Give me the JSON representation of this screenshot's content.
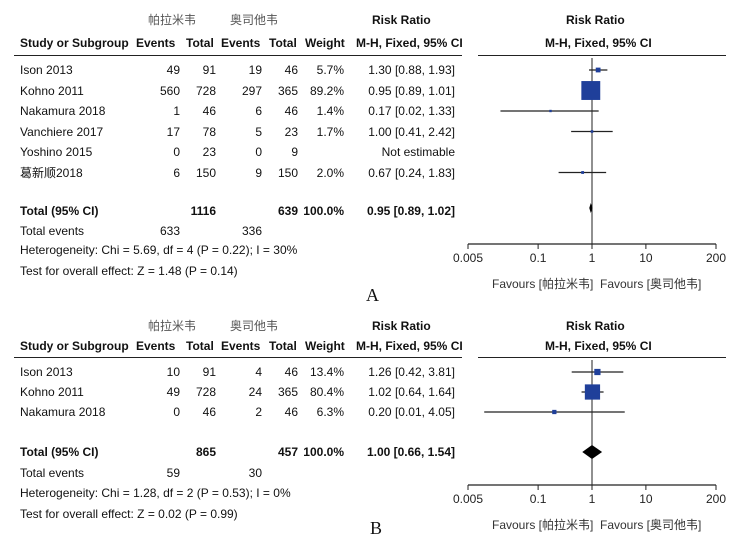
{
  "headers": {
    "study": "Study or Subgroup",
    "events": "Events",
    "total": "Total",
    "weight": "Weight",
    "rr_title": "Risk Ratio",
    "rr_method": "M-H, Fixed, 95% CI"
  },
  "panels": [
    {
      "label": "A",
      "group1": "帕拉米韦",
      "group2": "奥司他韦",
      "rows": [
        {
          "study": "Ison 2013",
          "e1": "49",
          "t1": "91",
          "e2": "19",
          "t2": "46",
          "weight": "5.7%",
          "ci": "1.30 [0.88, 1.93]"
        },
        {
          "study": "Kohno 2011",
          "e1": "560",
          "t1": "728",
          "e2": "297",
          "t2": "365",
          "weight": "89.2%",
          "ci": "0.95 [0.89, 1.01]"
        },
        {
          "study": "Nakamura 2018",
          "e1": "1",
          "t1": "46",
          "e2": "6",
          "t2": "46",
          "weight": "1.4%",
          "ci": "0.17 [0.02, 1.33]"
        },
        {
          "study": "Vanchiere 2017",
          "e1": "17",
          "t1": "78",
          "e2": "5",
          "t2": "23",
          "weight": "1.7%",
          "ci": "1.00 [0.41, 2.42]"
        },
        {
          "study": "Yoshino 2015",
          "e1": "0",
          "t1": "23",
          "e2": "0",
          "t2": "9",
          "weight": "",
          "ci": "Not estimable"
        },
        {
          "study": "葛新顺2018",
          "e1": "6",
          "t1": "150",
          "e2": "9",
          "t2": "150",
          "weight": "2.0%",
          "ci": "0.67 [0.24, 1.83]"
        }
      ],
      "total": {
        "label": "Total (95% CI)",
        "t1": "1116",
        "t2": "639",
        "weight": "100.0%",
        "ci": "0.95 [0.89, 1.02]"
      },
      "events": {
        "label": "Total events",
        "e1": "633",
        "e2": "336"
      },
      "heterogeneity": "Heterogeneity: Chi  = 5.69, df = 4 (P = 0.22); I  = 30%",
      "overall": "Test for overall effect: Z = 1.48 (P = 0.14)",
      "axis_ticks": [
        "0.005",
        "0.1",
        "1",
        "10",
        "200"
      ],
      "favours_left": "Favours [帕拉米韦]",
      "favours_right": "Favours [奥司他韦]"
    },
    {
      "label": "B",
      "group1": "帕拉米韦",
      "group2": "奥司他韦",
      "rows": [
        {
          "study": "Ison 2013",
          "e1": "10",
          "t1": "91",
          "e2": "4",
          "t2": "46",
          "weight": "13.4%",
          "ci": "1.26 [0.42, 3.81]"
        },
        {
          "study": "Kohno 2011",
          "e1": "49",
          "t1": "728",
          "e2": "24",
          "t2": "365",
          "weight": "80.4%",
          "ci": "1.02 [0.64, 1.64]"
        },
        {
          "study": "Nakamura 2018",
          "e1": "0",
          "t1": "46",
          "e2": "2",
          "t2": "46",
          "weight": "6.3%",
          "ci": "0.20 [0.01, 4.05]"
        }
      ],
      "total": {
        "label": "Total (95% CI)",
        "t1": "865",
        "t2": "457",
        "weight": "100.0%",
        "ci": "1.00 [0.66, 1.54]"
      },
      "events": {
        "label": "Total events",
        "e1": "59",
        "e2": "30"
      },
      "heterogeneity": "Heterogeneity: Chi  = 1.28, df = 2 (P = 0.53); I  = 0%",
      "overall": "Test for overall effect: Z = 0.02 (P = 0.99)",
      "axis_ticks": [
        "0.005",
        "0.1",
        "1",
        "10",
        "200"
      ],
      "favours_left": "Favours [帕拉米韦]",
      "favours_right": "Favours [奥司他韦]"
    }
  ],
  "chart_data": [
    {
      "type": "forest",
      "xscale": "log",
      "xlim": [
        0.005,
        200
      ],
      "ref_line": 1,
      "study_color": "#1f3f9a",
      "studies": [
        {
          "name": "Ison 2013",
          "rr": 1.3,
          "lo": 0.88,
          "hi": 1.93,
          "weight": 5.7
        },
        {
          "name": "Kohno 2011",
          "rr": 0.95,
          "lo": 0.89,
          "hi": 1.01,
          "weight": 89.2
        },
        {
          "name": "Nakamura 2018",
          "rr": 0.17,
          "lo": 0.02,
          "hi": 1.33,
          "weight": 1.4
        },
        {
          "name": "Vanchiere 2017",
          "rr": 1.0,
          "lo": 0.41,
          "hi": 2.42,
          "weight": 1.7
        },
        {
          "name": "Yoshino 2015",
          "rr": null,
          "lo": null,
          "hi": null,
          "weight": null
        },
        {
          "name": "葛新顺2018",
          "rr": 0.67,
          "lo": 0.24,
          "hi": 1.83,
          "weight": 2.0
        }
      ],
      "pooled": {
        "rr": 0.95,
        "lo": 0.89,
        "hi": 1.02
      }
    },
    {
      "type": "forest",
      "xscale": "log",
      "xlim": [
        0.005,
        200
      ],
      "ref_line": 1,
      "study_color": "#1f3f9a",
      "studies": [
        {
          "name": "Ison 2013",
          "rr": 1.26,
          "lo": 0.42,
          "hi": 3.81,
          "weight": 13.4
        },
        {
          "name": "Kohno 2011",
          "rr": 1.02,
          "lo": 0.64,
          "hi": 1.64,
          "weight": 80.4
        },
        {
          "name": "Nakamura 2018",
          "rr": 0.2,
          "lo": 0.01,
          "hi": 4.05,
          "weight": 6.3
        }
      ],
      "pooled": {
        "rr": 1.0,
        "lo": 0.66,
        "hi": 1.54
      }
    }
  ]
}
